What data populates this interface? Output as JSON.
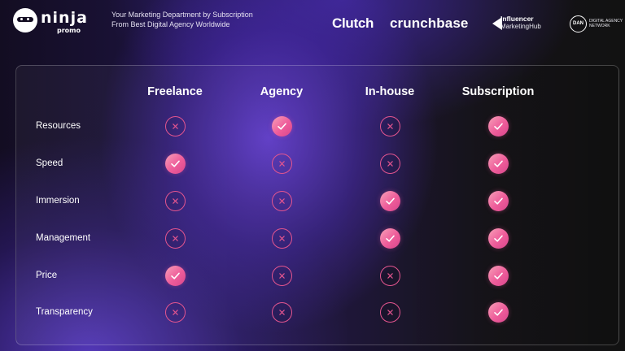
{
  "header": {
    "logo": {
      "name": "ninja",
      "sub": "promo"
    },
    "tagline": [
      "Your Marketing Department by Subscription",
      "From Best Digital Agency Worldwide"
    ],
    "partners": {
      "clutch": "Clutch",
      "crunchbase": "crunchbase",
      "influencer": {
        "line1": "Influencer",
        "line2": "MarketingHub"
      },
      "dan": {
        "badge": "DAN",
        "line1": "DIGITAL AGENCY",
        "line2": "NETWORK"
      }
    }
  },
  "comparison": {
    "columns": [
      "Freelance",
      "Agency",
      "In-house",
      "Subscription"
    ],
    "rows": [
      {
        "label": "Resources",
        "values": [
          false,
          true,
          false,
          true
        ]
      },
      {
        "label": "Speed",
        "values": [
          true,
          false,
          false,
          true
        ]
      },
      {
        "label": "Immersion",
        "values": [
          false,
          false,
          true,
          true
        ]
      },
      {
        "label": "Management",
        "values": [
          false,
          false,
          true,
          true
        ]
      },
      {
        "label": "Price",
        "values": [
          true,
          false,
          false,
          true
        ]
      },
      {
        "label": "Transparency",
        "values": [
          false,
          false,
          false,
          true
        ]
      }
    ],
    "icons": {
      "yes": "check-icon",
      "no": "cross-icon"
    },
    "colors": {
      "accent": "#ee5c9a",
      "accent_light": "#f7a1b8",
      "outline": "#e4558f"
    }
  }
}
